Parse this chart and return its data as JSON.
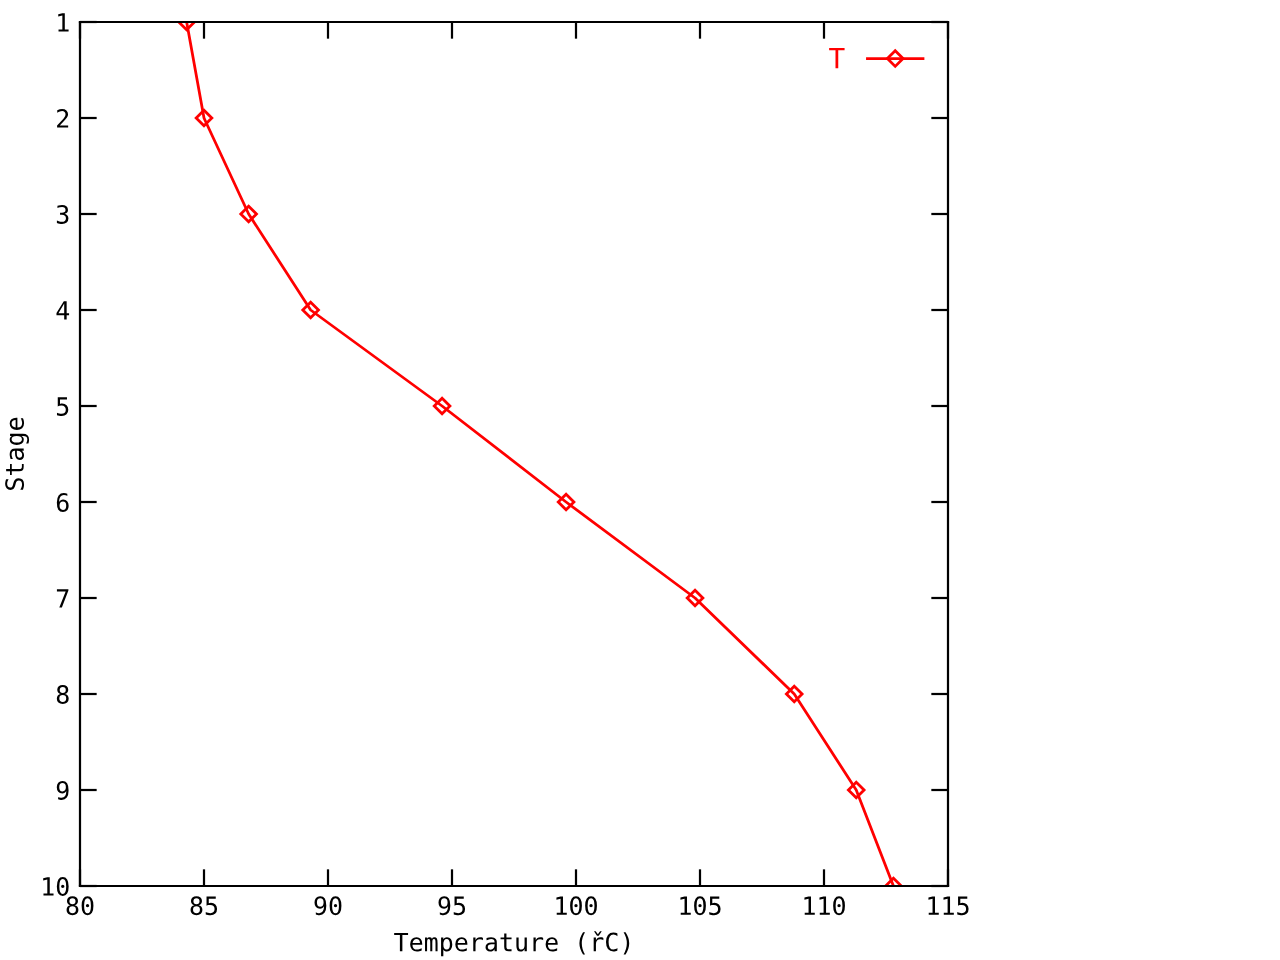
{
  "chart_data": {
    "type": "line",
    "xlabel": "Temperature (řC)",
    "ylabel": "Stage",
    "x": [
      84.3,
      85.0,
      86.8,
      89.3,
      94.6,
      99.6,
      104.8,
      108.8,
      111.3,
      112.8
    ],
    "series": [
      {
        "name": "T",
        "color": "#ff0000",
        "values": [
          1,
          2,
          3,
          4,
          5,
          6,
          7,
          8,
          9,
          10
        ]
      }
    ],
    "xlim": [
      80,
      115
    ],
    "xticks": [
      80,
      85,
      90,
      95,
      100,
      105,
      110,
      115
    ],
    "ylim": [
      10,
      1
    ],
    "yticks": [
      1,
      2,
      3,
      4,
      5,
      6,
      7,
      8,
      9,
      10
    ],
    "grid": false,
    "legend": "top right",
    "marker": "diamond",
    "line_style": "solid"
  }
}
